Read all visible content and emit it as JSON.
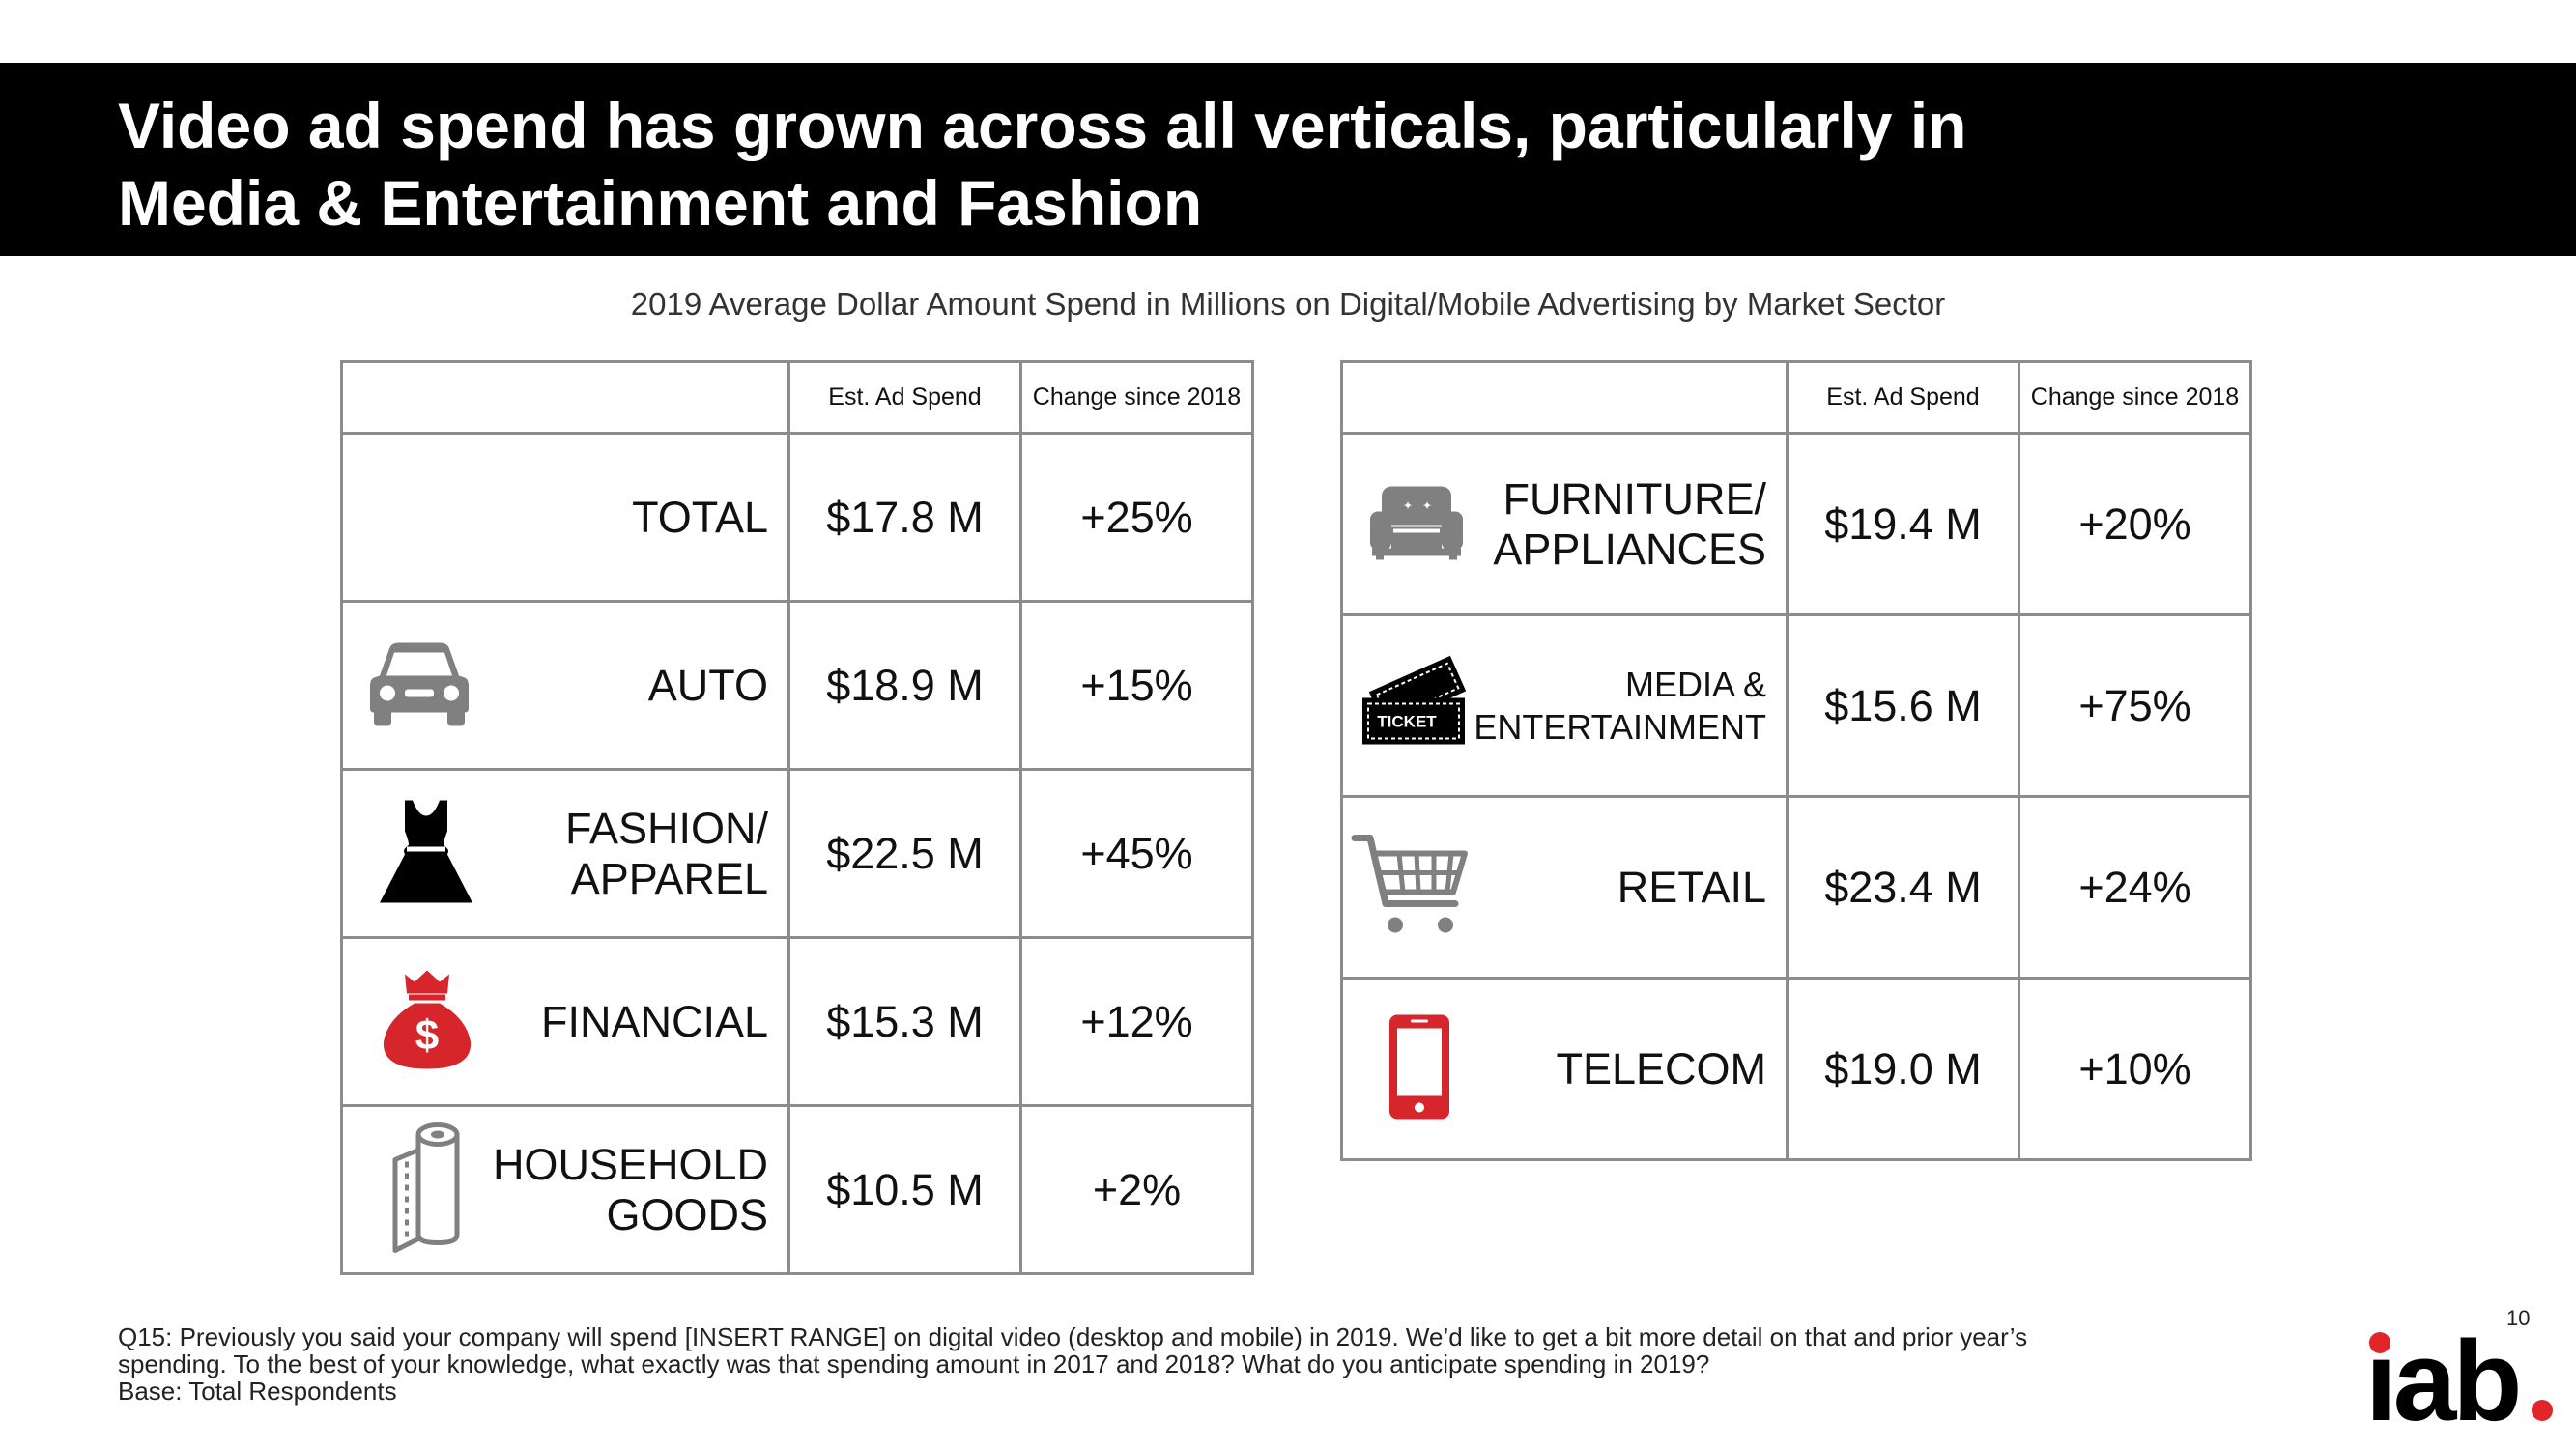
{
  "slide": {
    "title_line1": "Video ad spend has grown across all verticals, particularly in",
    "title_line2": "Media & Entertainment and Fashion",
    "subtitle": "2019 Average Dollar Amount Spend in Millions on Digital/Mobile Advertising by Market Sector",
    "page_number": "10",
    "logo_text": "iab",
    "brand_color": "#e0262a"
  },
  "table_headers": {
    "spend": "Est. Ad Spend",
    "change": "Change since 2018"
  },
  "left_table": [
    {
      "line1": "TOTAL",
      "line2": "",
      "spend": "$17.8 M",
      "change": "+25%",
      "icon": "none"
    },
    {
      "line1": "AUTO",
      "line2": "",
      "spend": "$18.9 M",
      "change": "+15%",
      "icon": "car-icon"
    },
    {
      "line1": "FASHION/",
      "line2": "APPAREL",
      "spend": "$22.5 M",
      "change": "+45%",
      "icon": "dress-icon"
    },
    {
      "line1": "FINANCIAL",
      "line2": "",
      "spend": "$15.3 M",
      "change": "+12%",
      "icon": "money-bag-icon"
    },
    {
      "line1": "HOUSEHOLD",
      "line2": "GOODS",
      "spend": "$10.5 M",
      "change": "+2%",
      "icon": "paper-towel-icon"
    }
  ],
  "right_table": [
    {
      "line1": "FURNITURE/",
      "line2": "APPLIANCES",
      "spend": "$19.4 M",
      "change": "+20%",
      "icon": "sofa-icon"
    },
    {
      "line1": "MEDIA &",
      "line2": "ENTERTAINMENT",
      "spend": "$15.6 M",
      "change": "+75%",
      "icon": "ticket-icon",
      "ticket_text": "TICKET"
    },
    {
      "line1": "RETAIL",
      "line2": "",
      "spend": "$23.4 M",
      "change": "+24%",
      "icon": "shopping-cart-icon"
    },
    {
      "line1": "TELECOM",
      "line2": "",
      "spend": "$19.0 M",
      "change": "+10%",
      "icon": "mobile-phone-icon"
    }
  ],
  "footnote": {
    "line1": "Q15: Previously you said your company will spend [INSERT RANGE] on digital video (desktop and mobile) in 2019.  We’d like to get a bit more detail on that and prior year’s",
    "line2": "spending.  To the best of your knowledge, what exactly was that spending amount in 2017 and 2018? What do you anticipate spending in 2019?",
    "line3": "Base: Total Respondents"
  },
  "colors": {
    "icon_gray": "#808080",
    "icon_black": "#000000",
    "icon_red": "#d7262b",
    "border_gray": "#8c8c8c"
  }
}
